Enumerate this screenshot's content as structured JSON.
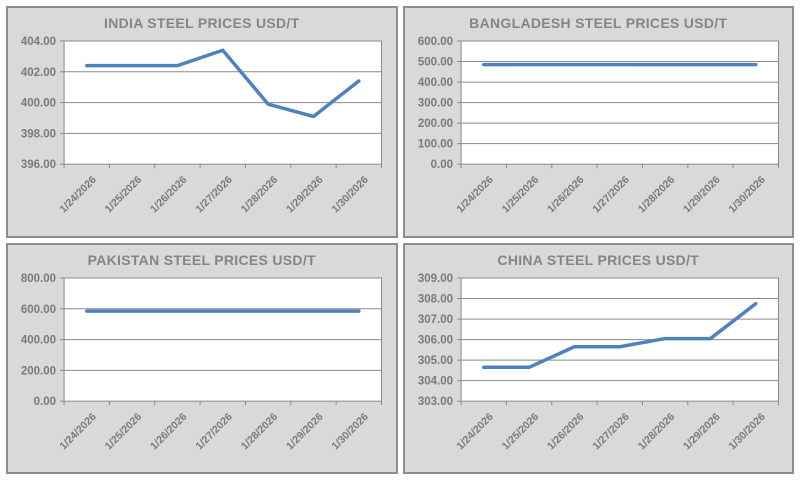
{
  "colors": {
    "line": "#4f81bd",
    "panel_bg": "#d9d9d9",
    "panel_border": "#8c8c8c",
    "grid": "#8a8a8a",
    "plot_bg": "#ffffff",
    "title_text": "#858585",
    "axis_text": "#7a7a7a"
  },
  "chart_data": [
    {
      "type": "line",
      "title": "INDIA STEEL PRICES USD/T",
      "categories": [
        "1/24/2026",
        "1/25/2026",
        "1/26/2026",
        "1/27/2026",
        "1/28/2026",
        "1/29/2026",
        "1/30/2026"
      ],
      "values": [
        402.4,
        402.4,
        402.4,
        403.4,
        399.9,
        399.1,
        401.4
      ],
      "ylim": [
        396,
        404
      ],
      "ystep": 2,
      "y_ticks": [
        "396.00",
        "398.00",
        "400.00",
        "402.00",
        "404.00"
      ],
      "grid": true,
      "legend": "none"
    },
    {
      "type": "line",
      "title": "BANGLADESH STEEL PRICES USD/T",
      "categories": [
        "1/24/2026",
        "1/25/2026",
        "1/26/2026",
        "1/27/2026",
        "1/28/2026",
        "1/29/2026",
        "1/30/2026"
      ],
      "values": [
        485,
        485,
        485,
        485,
        485,
        485,
        485
      ],
      "ylim": [
        0,
        600
      ],
      "ystep": 100,
      "y_ticks": [
        "0.00",
        "100.00",
        "200.00",
        "300.00",
        "400.00",
        "500.00",
        "600.00"
      ],
      "grid": true,
      "legend": "none"
    },
    {
      "type": "line",
      "title": "PAKISTAN STEEL PRICES USD/T",
      "categories": [
        "1/24/2026",
        "1/25/2026",
        "1/26/2026",
        "1/27/2026",
        "1/28/2026",
        "1/29/2026",
        "1/30/2026"
      ],
      "values": [
        585,
        585,
        585,
        585,
        585,
        585,
        585
      ],
      "ylim": [
        0,
        800
      ],
      "ystep": 200,
      "y_ticks": [
        "0.00",
        "200.00",
        "400.00",
        "600.00",
        "800.00"
      ],
      "grid": true,
      "legend": "none"
    },
    {
      "type": "line",
      "title": "CHINA STEEL PRICES USD/T",
      "categories": [
        "1/24/2026",
        "1/25/2026",
        "1/26/2026",
        "1/27/2026",
        "1/28/2026",
        "1/29/2026",
        "1/30/2026"
      ],
      "values": [
        304.65,
        304.65,
        305.65,
        305.65,
        306.05,
        306.05,
        307.75
      ],
      "ylim": [
        303,
        309
      ],
      "ystep": 1,
      "y_ticks": [
        "303.00",
        "304.00",
        "305.00",
        "306.00",
        "307.00",
        "308.00",
        "309.00"
      ],
      "grid": true,
      "legend": "none"
    }
  ]
}
